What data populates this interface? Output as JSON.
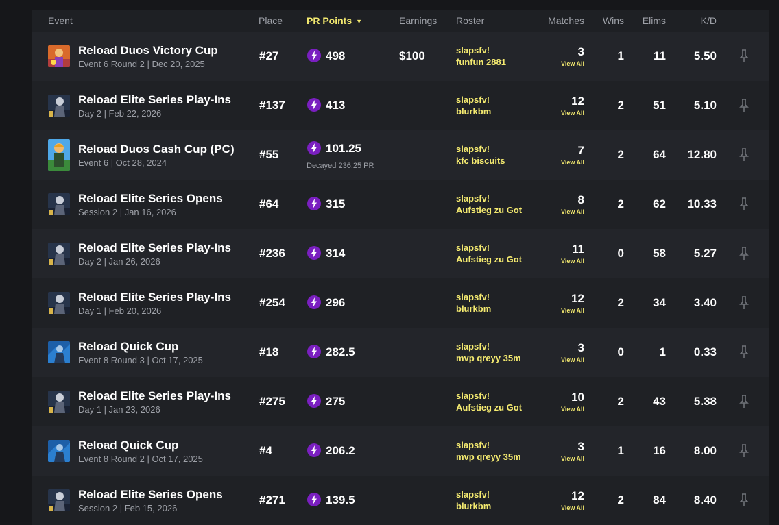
{
  "header": {
    "event": "Event",
    "place": "Place",
    "pr_points": "PR Points",
    "earnings": "Earnings",
    "roster": "Roster",
    "matches": "Matches",
    "wins": "Wins",
    "elims": "Elims",
    "kd": "K/D"
  },
  "colors": {
    "accent_yellow": "#f4ea70",
    "pr_purple": "#7a1fc0",
    "row_odd": "#23252a",
    "row_even": "#1f2125"
  },
  "view_all_label": "View All",
  "rows": [
    {
      "title": "Reload Duos Victory Cup",
      "subtitle": "Event 6 Round 2 | Dec 20, 2025",
      "place": "#27",
      "pr": "498",
      "decayed": "",
      "earnings": "$100",
      "roster1": "slapsfv!",
      "roster2": "funfun 2881",
      "matches": "3",
      "wins": "1",
      "elims": "11",
      "kd": "5.50",
      "thumb": "duos-victory"
    },
    {
      "title": "Reload Elite Series Play-Ins",
      "subtitle": "Day 2 | Feb 22, 2026",
      "place": "#137",
      "pr": "413",
      "decayed": "",
      "earnings": "",
      "roster1": "slapsfv!",
      "roster2": "blurkbm",
      "matches": "12",
      "wins": "2",
      "elims": "51",
      "kd": "5.10",
      "thumb": "elite"
    },
    {
      "title": "Reload Duos Cash Cup (PC)",
      "subtitle": "Event 6 | Oct 28, 2024",
      "place": "#55",
      "pr": "101.25",
      "decayed": "Decayed 236.25 PR",
      "earnings": "",
      "roster1": "slapsfv!",
      "roster2": "kfc biscuits",
      "matches": "7",
      "wins": "2",
      "elims": "64",
      "kd": "12.80",
      "thumb": "cash-cup"
    },
    {
      "title": "Reload Elite Series Opens",
      "subtitle": "Session 2 | Jan 16, 2026",
      "place": "#64",
      "pr": "315",
      "decayed": "",
      "earnings": "",
      "roster1": "slapsfv!",
      "roster2": "Aufstieg zu Got",
      "matches": "8",
      "wins": "2",
      "elims": "62",
      "kd": "10.33",
      "thumb": "elite"
    },
    {
      "title": "Reload Elite Series Play-Ins",
      "subtitle": "Day 2 | Jan 26, 2026",
      "place": "#236",
      "pr": "314",
      "decayed": "",
      "earnings": "",
      "roster1": "slapsfv!",
      "roster2": "Aufstieg zu Got",
      "matches": "11",
      "wins": "0",
      "elims": "58",
      "kd": "5.27",
      "thumb": "elite"
    },
    {
      "title": "Reload Elite Series Play-Ins",
      "subtitle": "Day 1 | Feb 20, 2026",
      "place": "#254",
      "pr": "296",
      "decayed": "",
      "earnings": "",
      "roster1": "slapsfv!",
      "roster2": "blurkbm",
      "matches": "12",
      "wins": "2",
      "elims": "34",
      "kd": "3.40",
      "thumb": "elite"
    },
    {
      "title": "Reload Quick Cup",
      "subtitle": "Event 8 Round 3 | Oct 17, 2025",
      "place": "#18",
      "pr": "282.5",
      "decayed": "",
      "earnings": "",
      "roster1": "slapsfv!",
      "roster2": "mvp qreyy 35m",
      "matches": "3",
      "wins": "0",
      "elims": "1",
      "kd": "0.33",
      "thumb": "quick"
    },
    {
      "title": "Reload Elite Series Play-Ins",
      "subtitle": "Day 1 | Jan 23, 2026",
      "place": "#275",
      "pr": "275",
      "decayed": "",
      "earnings": "",
      "roster1": "slapsfv!",
      "roster2": "Aufstieg zu Got",
      "matches": "10",
      "wins": "2",
      "elims": "43",
      "kd": "5.38",
      "thumb": "elite"
    },
    {
      "title": "Reload Quick Cup",
      "subtitle": "Event 8 Round 2 | Oct 17, 2025",
      "place": "#4",
      "pr": "206.2",
      "decayed": "",
      "earnings": "",
      "roster1": "slapsfv!",
      "roster2": "mvp qreyy 35m",
      "matches": "3",
      "wins": "1",
      "elims": "16",
      "kd": "8.00",
      "thumb": "quick"
    },
    {
      "title": "Reload Elite Series Opens",
      "subtitle": "Session 2 | Feb 15, 2026",
      "place": "#271",
      "pr": "139.5",
      "decayed": "",
      "earnings": "",
      "roster1": "slapsfv!",
      "roster2": "blurkbm",
      "matches": "12",
      "wins": "2",
      "elims": "84",
      "kd": "8.40",
      "thumb": "elite"
    }
  ]
}
